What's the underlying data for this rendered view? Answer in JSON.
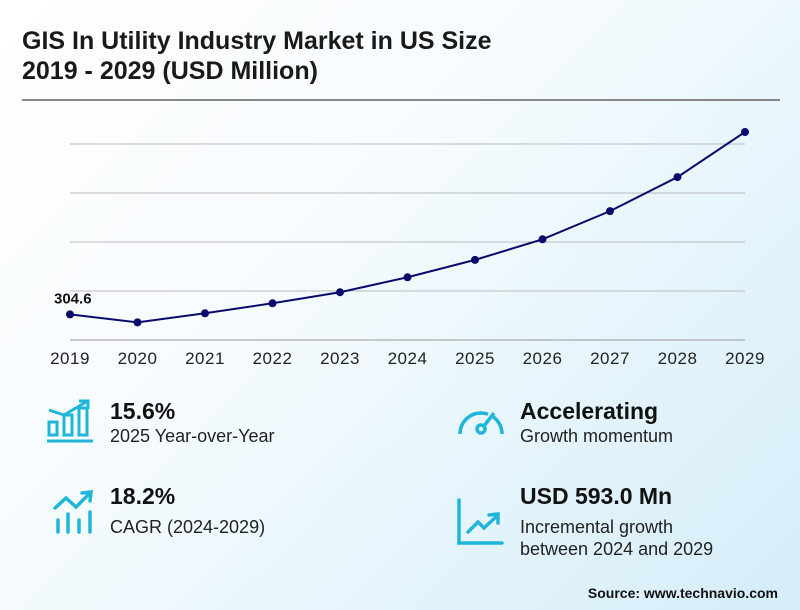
{
  "title_line1": "GIS In Utility Industry Market in US Size",
  "title_line2": "2019 - 2029 (USD Million)",
  "chart_data": {
    "type": "line",
    "title": "GIS In Utility Industry Market in US Size 2019 - 2029 (USD Million)",
    "categories": [
      "2019",
      "2020",
      "2021",
      "2022",
      "2023",
      "2024",
      "2025",
      "2026",
      "2027",
      "2028",
      "2029"
    ],
    "values": [
      304.6,
      272,
      309,
      350,
      395,
      456,
      527,
      611,
      726,
      865,
      1049
    ],
    "data_labels": [
      {
        "category": "2019",
        "text": "304.6"
      }
    ],
    "ylim": [
      200,
      1200
    ],
    "grid": true,
    "y_tick_labels_shown": false,
    "line_color": "#0b0b6b"
  },
  "stats": [
    {
      "value": "15.6%",
      "label": "2025 Year-over-Year",
      "icon": "bar-chart-growth-icon"
    },
    {
      "value": "Accelerating",
      "label": "Growth momentum",
      "icon": "speedometer-icon"
    },
    {
      "value": "18.2%",
      "label": "CAGR (2024-2029)",
      "icon": "trend-bars-icon"
    },
    {
      "value": "USD 593.0 Mn",
      "label_line1": "Incremental growth",
      "label_line2": "between 2024 and 2029",
      "icon": "line-chart-icon"
    }
  ],
  "accent_color": "#1fb6d9",
  "source": "Source: www.technavio.com"
}
